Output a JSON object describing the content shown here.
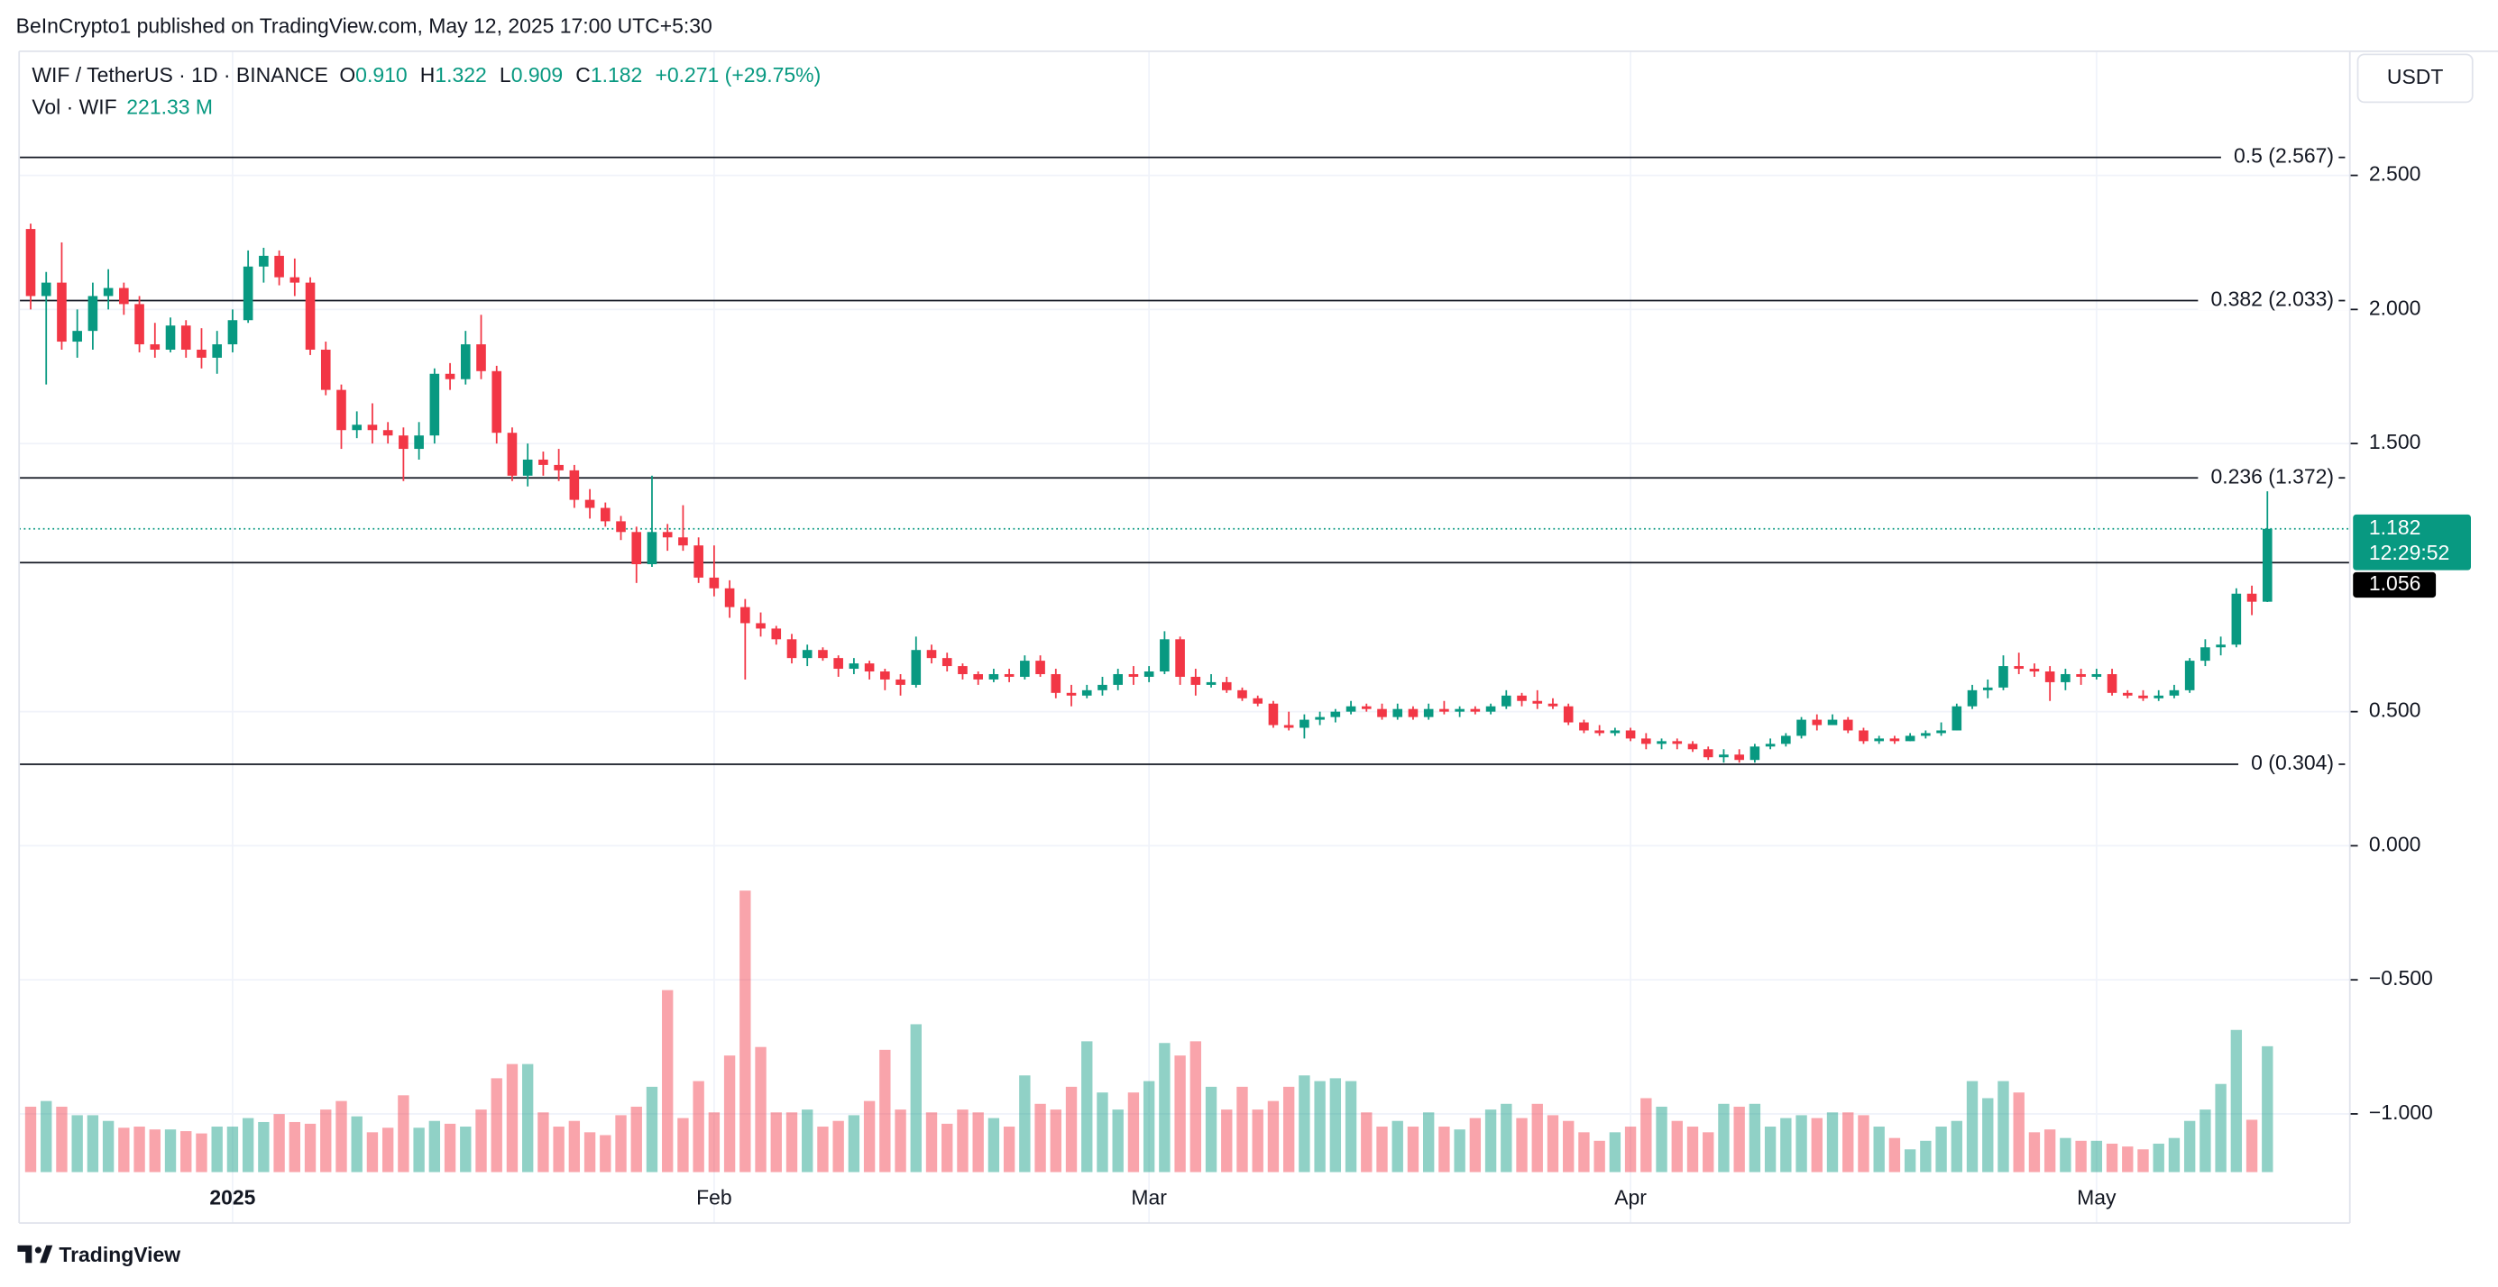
{
  "published": "BeInCrypto1 published on TradingView.com, May 12, 2025 17:00 UTC+5:30",
  "currency_button": "USDT",
  "brand": "TradingView",
  "chart_data": {
    "type": "candlestick",
    "symbol": "WIF / TetherUS · 1D · BINANCE",
    "ohlc_legend": [
      {
        "key": "O",
        "value": "0.910"
      },
      {
        "key": "H",
        "value": "1.322"
      },
      {
        "key": "L",
        "value": "0.909"
      },
      {
        "key": "C",
        "value": "1.182"
      }
    ],
    "change": "+0.271 (+29.75%)",
    "volume_title": "Vol · WIF",
    "volume_label": "221.33 M",
    "categories": [
      null,
      null,
      null,
      null,
      null,
      null,
      null,
      null,
      null,
      null,
      null,
      null,
      null,
      "2025",
      null,
      null,
      null,
      null,
      null,
      null,
      null,
      null,
      null,
      null,
      null,
      null,
      null,
      null,
      null,
      null,
      null,
      null,
      null,
      null,
      null,
      null,
      null,
      null,
      null,
      null,
      null,
      null,
      null,
      null,
      "Feb",
      null,
      null,
      null,
      null,
      null,
      null,
      null,
      null,
      null,
      null,
      null,
      null,
      null,
      null,
      null,
      null,
      null,
      null,
      null,
      null,
      null,
      null,
      null,
      null,
      null,
      null,
      null,
      "Mar",
      null,
      null,
      null,
      null,
      null,
      null,
      null,
      null,
      null,
      null,
      null,
      null,
      null,
      null,
      null,
      null,
      null,
      null,
      null,
      null,
      null,
      null,
      null,
      null,
      null,
      null,
      null,
      null,
      null,
      null,
      "Apr",
      null,
      null,
      null,
      null,
      null,
      null,
      null,
      null,
      null,
      null,
      null,
      null,
      null,
      null,
      null,
      null,
      null,
      null,
      null,
      null,
      null,
      null,
      null,
      null,
      null,
      null,
      null,
      null,
      null,
      "May",
      null,
      null,
      null,
      null,
      null,
      null,
      null,
      null,
      null,
      null,
      null
    ],
    "open": [
      2.3,
      2.05,
      2.1,
      1.88,
      1.92,
      2.05,
      2.08,
      2.02,
      1.87,
      1.85,
      1.94,
      1.85,
      1.82,
      1.87,
      1.96,
      2.16,
      2.2,
      2.12,
      2.1,
      1.85,
      1.7,
      1.55,
      1.57,
      1.55,
      1.53,
      1.48,
      1.53,
      1.76,
      1.74,
      1.87,
      1.77,
      1.54,
      1.38,
      1.44,
      1.42,
      1.4,
      1.29,
      1.26,
      1.21,
      1.17,
      1.05,
      1.17,
      1.15,
      1.12,
      1.0,
      0.96,
      0.89,
      0.83,
      0.81,
      0.77,
      0.7,
      0.73,
      0.7,
      0.66,
      0.68,
      0.65,
      0.62,
      0.6,
      0.73,
      0.7,
      0.67,
      0.64,
      0.62,
      0.64,
      0.63,
      0.69,
      0.64,
      0.57,
      0.56,
      0.58,
      0.6,
      0.64,
      0.63,
      0.65,
      0.77,
      0.63,
      0.6,
      0.61,
      0.58,
      0.55,
      0.53,
      0.45,
      0.44,
      0.47,
      0.48,
      0.5,
      0.52,
      0.51,
      0.48,
      0.51,
      0.48,
      0.51,
      0.5,
      0.51,
      0.5,
      0.52,
      0.56,
      0.54,
      0.53,
      0.52,
      0.46,
      0.43,
      0.42,
      0.43,
      0.4,
      0.38,
      0.39,
      0.38,
      0.36,
      0.33,
      0.34,
      0.32,
      0.37,
      0.38,
      0.41,
      0.47,
      0.45,
      0.47,
      0.43,
      0.39,
      0.4,
      0.39,
      0.41,
      0.42,
      0.43,
      0.52,
      0.58,
      0.59,
      0.67,
      0.66,
      0.65,
      0.61,
      0.64,
      0.63,
      0.64,
      0.57,
      0.56,
      0.55,
      0.56,
      0.58,
      0.69,
      0.74,
      0.75,
      0.94,
      0.91
    ],
    "high": [
      2.32,
      2.14,
      2.25,
      2.0,
      2.1,
      2.15,
      2.1,
      2.05,
      1.95,
      1.97,
      1.96,
      1.93,
      1.92,
      2.0,
      2.22,
      2.23,
      2.22,
      2.19,
      2.12,
      1.88,
      1.72,
      1.62,
      1.65,
      1.58,
      1.56,
      1.58,
      1.78,
      1.8,
      1.92,
      1.98,
      1.79,
      1.56,
      1.5,
      1.47,
      1.48,
      1.42,
      1.33,
      1.28,
      1.23,
      1.19,
      1.38,
      1.2,
      1.27,
      1.15,
      1.12,
      0.99,
      0.92,
      0.87,
      0.82,
      0.79,
      0.75,
      0.74,
      0.71,
      0.7,
      0.69,
      0.66,
      0.64,
      0.78,
      0.75,
      0.72,
      0.68,
      0.65,
      0.66,
      0.66,
      0.71,
      0.71,
      0.66,
      0.6,
      0.6,
      0.63,
      0.66,
      0.67,
      0.67,
      0.8,
      0.78,
      0.66,
      0.64,
      0.63,
      0.59,
      0.56,
      0.54,
      0.5,
      0.49,
      0.5,
      0.51,
      0.54,
      0.53,
      0.53,
      0.53,
      0.52,
      0.53,
      0.54,
      0.52,
      0.52,
      0.53,
      0.58,
      0.57,
      0.58,
      0.55,
      0.53,
      0.47,
      0.45,
      0.44,
      0.44,
      0.42,
      0.4,
      0.4,
      0.39,
      0.37,
      0.36,
      0.36,
      0.38,
      0.4,
      0.42,
      0.48,
      0.49,
      0.49,
      0.48,
      0.44,
      0.41,
      0.41,
      0.42,
      0.43,
      0.46,
      0.53,
      0.6,
      0.62,
      0.71,
      0.72,
      0.68,
      0.67,
      0.66,
      0.66,
      0.66,
      0.66,
      0.58,
      0.58,
      0.58,
      0.6,
      0.7,
      0.77,
      0.78,
      0.96,
      0.97,
      1.322
    ],
    "low": [
      2.0,
      1.72,
      1.85,
      1.82,
      1.85,
      2.0,
      1.98,
      1.84,
      1.82,
      1.84,
      1.82,
      1.78,
      1.76,
      1.84,
      1.95,
      2.1,
      2.09,
      2.05,
      1.83,
      1.68,
      1.48,
      1.52,
      1.5,
      1.5,
      1.36,
      1.44,
      1.5,
      1.7,
      1.72,
      1.74,
      1.5,
      1.36,
      1.34,
      1.38,
      1.36,
      1.26,
      1.22,
      1.19,
      1.14,
      0.98,
      1.04,
      1.1,
      1.1,
      0.98,
      0.93,
      0.85,
      0.62,
      0.78,
      0.75,
      0.68,
      0.67,
      0.69,
      0.63,
      0.64,
      0.62,
      0.58,
      0.56,
      0.59,
      0.68,
      0.65,
      0.62,
      0.6,
      0.61,
      0.61,
      0.62,
      0.63,
      0.55,
      0.52,
      0.55,
      0.56,
      0.58,
      0.6,
      0.61,
      0.64,
      0.6,
      0.56,
      0.59,
      0.57,
      0.54,
      0.52,
      0.44,
      0.43,
      0.4,
      0.45,
      0.46,
      0.49,
      0.5,
      0.47,
      0.47,
      0.47,
      0.47,
      0.49,
      0.48,
      0.49,
      0.49,
      0.51,
      0.52,
      0.51,
      0.51,
      0.45,
      0.42,
      0.41,
      0.41,
      0.39,
      0.36,
      0.36,
      0.36,
      0.35,
      0.32,
      0.31,
      0.31,
      0.31,
      0.36,
      0.37,
      0.4,
      0.43,
      0.45,
      0.42,
      0.38,
      0.38,
      0.38,
      0.39,
      0.4,
      0.41,
      0.43,
      0.51,
      0.55,
      0.58,
      0.64,
      0.63,
      0.54,
      0.58,
      0.6,
      0.62,
      0.56,
      0.55,
      0.54,
      0.54,
      0.55,
      0.57,
      0.67,
      0.71,
      0.74,
      0.86,
      0.909
    ],
    "close": [
      2.05,
      2.1,
      1.88,
      1.92,
      2.05,
      2.08,
      2.02,
      1.87,
      1.85,
      1.94,
      1.85,
      1.82,
      1.87,
      1.96,
      2.16,
      2.2,
      2.12,
      2.1,
      1.85,
      1.7,
      1.55,
      1.57,
      1.55,
      1.53,
      1.48,
      1.53,
      1.76,
      1.74,
      1.87,
      1.77,
      1.54,
      1.38,
      1.44,
      1.42,
      1.4,
      1.29,
      1.26,
      1.21,
      1.17,
      1.05,
      1.17,
      1.15,
      1.12,
      1.0,
      0.96,
      0.89,
      0.83,
      0.81,
      0.77,
      0.7,
      0.73,
      0.7,
      0.66,
      0.68,
      0.65,
      0.62,
      0.6,
      0.73,
      0.7,
      0.67,
      0.64,
      0.62,
      0.64,
      0.63,
      0.69,
      0.64,
      0.57,
      0.56,
      0.58,
      0.6,
      0.64,
      0.63,
      0.65,
      0.77,
      0.63,
      0.6,
      0.61,
      0.58,
      0.55,
      0.53,
      0.45,
      0.44,
      0.47,
      0.48,
      0.5,
      0.52,
      0.51,
      0.48,
      0.51,
      0.48,
      0.51,
      0.5,
      0.51,
      0.5,
      0.52,
      0.56,
      0.54,
      0.53,
      0.52,
      0.46,
      0.43,
      0.42,
      0.43,
      0.4,
      0.38,
      0.39,
      0.38,
      0.36,
      0.33,
      0.34,
      0.32,
      0.37,
      0.38,
      0.41,
      0.47,
      0.45,
      0.47,
      0.43,
      0.39,
      0.4,
      0.39,
      0.41,
      0.42,
      0.43,
      0.52,
      0.58,
      0.59,
      0.67,
      0.66,
      0.65,
      0.61,
      0.64,
      0.63,
      0.64,
      0.57,
      0.56,
      0.55,
      0.56,
      0.58,
      0.69,
      0.74,
      0.75,
      0.94,
      0.91,
      1.182
    ],
    "volume": [
      115,
      125,
      115,
      100,
      100,
      90,
      78,
      80,
      75,
      75,
      72,
      68,
      80,
      80,
      95,
      88,
      102,
      88,
      85,
      110,
      125,
      98,
      70,
      78,
      135,
      78,
      90,
      85,
      80,
      110,
      165,
      190,
      190,
      105,
      80,
      90,
      70,
      65,
      100,
      115,
      150,
      320,
      95,
      160,
      105,
      205,
      495,
      220,
      105,
      105,
      110,
      80,
      90,
      100,
      125,
      215,
      110,
      260,
      105,
      85,
      110,
      105,
      95,
      80,
      170,
      120,
      110,
      150,
      230,
      140,
      110,
      140,
      160,
      227,
      205,
      230,
      150,
      110,
      150,
      110,
      125,
      150,
      170,
      160,
      165,
      160,
      105,
      80,
      90,
      80,
      105,
      80,
      75,
      95,
      110,
      120,
      95,
      120,
      100,
      90,
      70,
      55,
      70,
      80,
      130,
      115,
      90,
      80,
      70,
      120,
      115,
      120,
      80,
      95,
      100,
      95,
      105,
      105,
      100,
      80,
      60,
      40,
      55,
      80,
      90,
      160,
      130,
      160,
      140,
      70,
      75,
      60,
      55,
      55,
      50,
      45,
      40,
      50,
      60,
      90,
      110,
      155,
      250,
      92,
      221.33
    ],
    "up_color": "#089981",
    "down_color": "#f23645",
    "ylim": [
      -1.407,
      2.963
    ],
    "yticks": [
      {
        "value": 2.5,
        "label": "2.500"
      },
      {
        "value": 2,
        "label": "2.000"
      },
      {
        "value": 1.5,
        "label": "1.500"
      },
      {
        "value": 0.5,
        "label": "0.500"
      },
      {
        "value": 0,
        "label": "0.000"
      },
      {
        "value": -0.5,
        "label": "−0.500"
      },
      {
        "value": -1,
        "label": "−1.000"
      }
    ],
    "y2lim": [
      0,
      1971
    ],
    "levels": [
      {
        "value": 2.567,
        "label": "0.5 (2.567)"
      },
      {
        "value": 2.033,
        "label": "0.382 (2.033)"
      },
      {
        "value": 1.372,
        "label": "0.236 (1.372)"
      },
      {
        "value": 0.304,
        "label": "0 (0.304)"
      }
    ],
    "support": {
      "value": 1.056,
      "label": "1.056"
    },
    "last_price": {
      "value": 1.182,
      "label": "1.182",
      "countdown": "12:29:52"
    },
    "grid": true
  }
}
